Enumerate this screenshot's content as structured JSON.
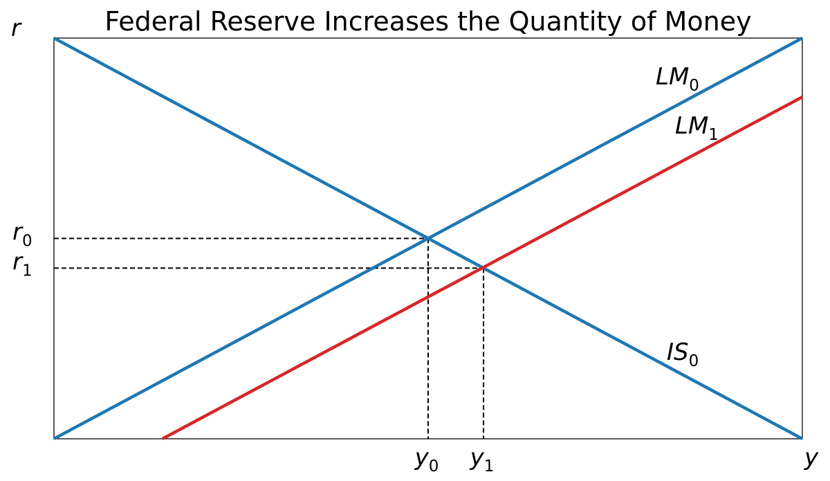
{
  "chart_data": {
    "type": "line",
    "title": "Federal Reserve Increases the Quantity of Money",
    "ylabel": "r",
    "xlabel": "y",
    "xlim": [
      0,
      1
    ],
    "ylim": [
      0,
      1
    ],
    "grid": false,
    "series": [
      {
        "name": "IS",
        "name_sub": "0",
        "color": "#1f77b4",
        "x": [
          0,
          1
        ],
        "y": [
          1,
          0
        ]
      },
      {
        "name": "LM",
        "name_sub": "0",
        "color": "#1f77b4",
        "x": [
          0,
          1
        ],
        "y": [
          0,
          1
        ]
      },
      {
        "name": "LM",
        "name_sub": "1",
        "color": "#d62728",
        "x": [
          0.145,
          1
        ],
        "y": [
          0,
          0.853
        ]
      }
    ],
    "equilibria": [
      {
        "x": 0.5,
        "y": 0.5,
        "x_label": "y",
        "x_sub": "0",
        "y_label": "r",
        "y_sub": "0"
      },
      {
        "x": 0.574,
        "y": 0.426,
        "x_label": "y",
        "x_sub": "1",
        "y_label": "r",
        "y_sub": "1"
      }
    ]
  }
}
